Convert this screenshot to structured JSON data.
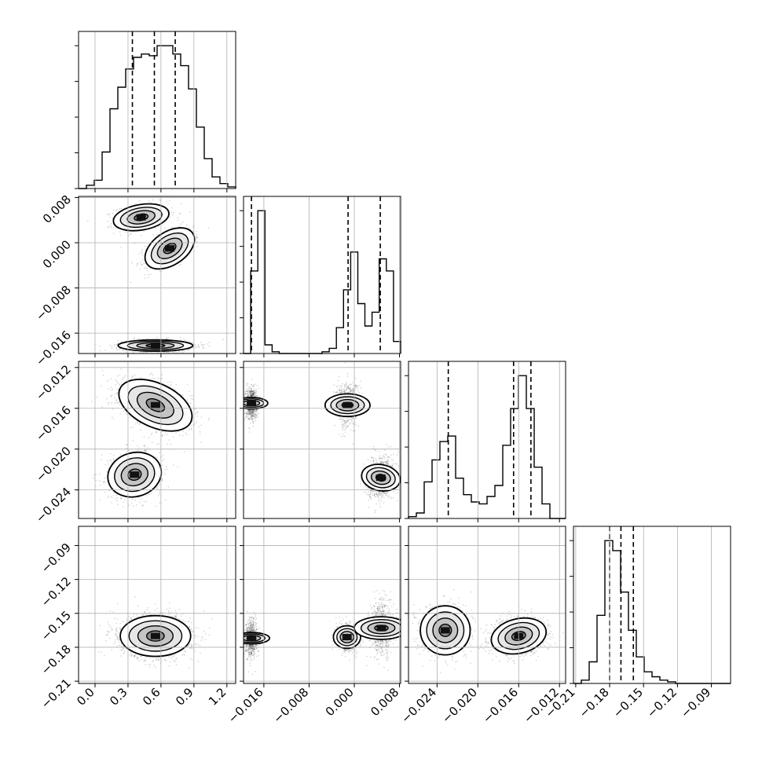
{
  "chart_data": {
    "type": "corner",
    "n_params": 4,
    "params": [
      {
        "range": [
          -0.15,
          1.28
        ],
        "ticks": [
          0.0,
          0.3,
          0.6,
          0.9,
          1.2
        ],
        "tick_labels": [
          "0.0",
          "0.3",
          "0.6",
          "0.9",
          "1.2"
        ],
        "quantiles": [
          0.34,
          0.54,
          0.73
        ]
      },
      {
        "range": [
          -0.0196,
          0.0082
        ],
        "ticks": [
          -0.016,
          -0.008,
          0.0,
          0.008
        ],
        "tick_labels": [
          "−0.016",
          "−0.008",
          "0.000",
          "0.008"
        ],
        "quantiles": [
          -0.0182,
          -0.0011,
          0.0046
        ]
      },
      {
        "range": [
          -0.0268,
          -0.0114
        ],
        "ticks": [
          -0.024,
          -0.02,
          -0.016,
          -0.012
        ],
        "tick_labels": [
          "−0.024",
          "−0.020",
          "−0.016",
          "−0.012"
        ],
        "quantiles": [
          -0.0229,
          -0.0165,
          -0.0148
        ]
      },
      {
        "range": [
          -0.212,
          -0.073
        ],
        "ticks": [
          -0.21,
          -0.18,
          -0.15,
          -0.12,
          -0.09
        ],
        "tick_labels": [
          "−0.21",
          "−0.18",
          "−0.15",
          "−0.12",
          "−0.09"
        ],
        "quantiles": [
          -0.18,
          -0.17,
          -0.159
        ]
      }
    ],
    "histograms": [
      {
        "param": 0,
        "bins": [
          -0.15,
          1.28
        ],
        "counts": [
          0,
          2,
          5,
          22,
          48,
          61,
          72,
          79,
          81,
          80,
          86,
          86,
          81,
          74,
          60,
          37,
          18,
          7,
          3,
          1
        ]
      },
      {
        "param": 1,
        "bins": [
          -0.0196,
          0.0082
        ],
        "counts": [
          0,
          48,
          83,
          5,
          1,
          0,
          0,
          0,
          0,
          0,
          0,
          1,
          3,
          15,
          37,
          59,
          29,
          16,
          24,
          55,
          48,
          7
        ]
      },
      {
        "param": 2,
        "bins": [
          -0.0268,
          -0.0114
        ],
        "counts": [
          1,
          3,
          20,
          32,
          42,
          45,
          22,
          13,
          9,
          8,
          12,
          18,
          40,
          60,
          78,
          60,
          28,
          8,
          0,
          0
        ]
      },
      {
        "param": 3,
        "bins": [
          -0.212,
          -0.073
        ],
        "counts": [
          0,
          2,
          13,
          41,
          86,
          80,
          55,
          32,
          16,
          7,
          4,
          2,
          1,
          0,
          0,
          0,
          0,
          0,
          0,
          0
        ]
      }
    ],
    "scatter_panels": [
      {
        "x_param": 0,
        "y_param": 1,
        "clusters": [
          {
            "cx": 0.42,
            "cy": 0.0045,
            "sx": 0.12,
            "sy": 0.0012,
            "rho": 0.25,
            "n": 700
          },
          {
            "cx": 0.68,
            "cy": -0.001,
            "sx": 0.11,
            "sy": 0.0017,
            "rho": 0.55,
            "n": 700
          },
          {
            "cx": 0.55,
            "cy": -0.0182,
            "sx": 0.17,
            "sy": 0.0005,
            "rho": 0.0,
            "n": 1000
          }
        ]
      },
      {
        "x_param": 0,
        "y_param": 2,
        "clusters": [
          {
            "cx": 0.55,
            "cy": -0.0157,
            "sx": 0.16,
            "sy": 0.0012,
            "rho": -0.45,
            "n": 1400
          },
          {
            "cx": 0.36,
            "cy": -0.0225,
            "sx": 0.12,
            "sy": 0.0011,
            "rho": 0.1,
            "n": 1000
          }
        ]
      },
      {
        "x_param": 1,
        "y_param": 2,
        "clusters": [
          {
            "cx": -0.0182,
            "cy": -0.0155,
            "sx": 0.0005,
            "sy": 0.0008,
            "rho": 0.0,
            "n": 700
          },
          {
            "cx": -0.0012,
            "cy": -0.0157,
            "sx": 0.001,
            "sy": 0.0011,
            "rho": 0.0,
            "n": 700
          },
          {
            "cx": 0.0047,
            "cy": -0.0228,
            "sx": 0.0011,
            "sy": 0.001,
            "rho": 0.2,
            "n": 900
          }
        ]
      },
      {
        "x_param": 0,
        "y_param": 3,
        "clusters": [
          {
            "cx": 0.55,
            "cy": -0.17,
            "sx": 0.16,
            "sy": 0.009,
            "rho": 0.0,
            "n": 2200
          }
        ]
      },
      {
        "x_param": 1,
        "y_param": 3,
        "clusters": [
          {
            "cx": -0.0182,
            "cy": -0.172,
            "sx": 0.0005,
            "sy": 0.008,
            "rho": 0.0,
            "n": 700
          },
          {
            "cx": -0.0013,
            "cy": -0.171,
            "sx": 0.001,
            "sy": 0.006,
            "rho": 0.0,
            "n": 700
          },
          {
            "cx": 0.0048,
            "cy": -0.163,
            "sx": 0.001,
            "sy": 0.012,
            "rho": 0.0,
            "n": 700
          }
        ]
      },
      {
        "x_param": 2,
        "y_param": 3,
        "clusters": [
          {
            "cx": -0.0232,
            "cy": -0.165,
            "sx": 0.0012,
            "sy": 0.011,
            "rho": 0.0,
            "n": 1000
          },
          {
            "cx": -0.016,
            "cy": -0.17,
            "sx": 0.0013,
            "sy": 0.008,
            "rho": 0.2,
            "n": 1400
          }
        ]
      }
    ]
  }
}
